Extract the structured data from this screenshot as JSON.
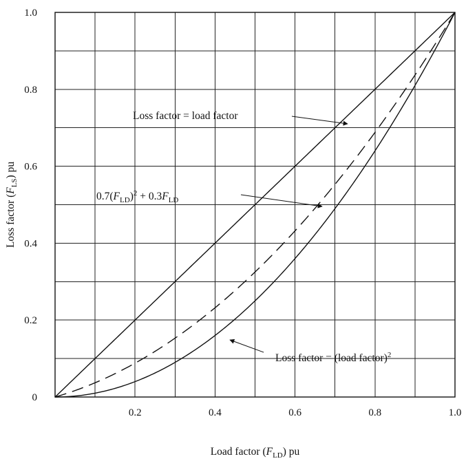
{
  "chart_data": {
    "type": "line",
    "xlabel": {
      "prefix": "Load factor (",
      "var": "F",
      "sub": "LD",
      "suffix": ") pu"
    },
    "ylabel": {
      "prefix": "Loss factor (",
      "var": "F",
      "sub": "LS",
      "suffix": ") pu"
    },
    "xlim": [
      0,
      1
    ],
    "ylim": [
      0,
      1
    ],
    "grid": true,
    "x_ticks": [
      {
        "value": 0.2,
        "label": "0.2"
      },
      {
        "value": 0.4,
        "label": "0.4"
      },
      {
        "value": 0.6,
        "label": "0.6"
      },
      {
        "value": 0.8,
        "label": "0.8"
      },
      {
        "value": 1.0,
        "label": "1.0"
      }
    ],
    "y_ticks": [
      {
        "value": 0,
        "label": "0"
      },
      {
        "value": 0.2,
        "label": "0.2"
      },
      {
        "value": 0.4,
        "label": "0.4"
      },
      {
        "value": 0.6,
        "label": "0.6"
      },
      {
        "value": 0.8,
        "label": "0.8"
      },
      {
        "value": 1.0,
        "label": "1.0"
      }
    ],
    "grid_x": [
      0.1,
      0.2,
      0.3,
      0.4,
      0.5,
      0.6,
      0.7,
      0.8,
      0.9
    ],
    "grid_y": [
      0.1,
      0.2,
      0.3,
      0.4,
      0.5,
      0.6,
      0.7,
      0.8,
      0.9
    ],
    "x": [
      0,
      0.1,
      0.2,
      0.3,
      0.4,
      0.5,
      0.6,
      0.7,
      0.8,
      0.9,
      1.0
    ],
    "series": [
      {
        "key": "linear",
        "style": "solid",
        "values": [
          0,
          0.1,
          0.2,
          0.3,
          0.4,
          0.5,
          0.6,
          0.7,
          0.8,
          0.9,
          1.0
        ]
      },
      {
        "key": "blend",
        "style": "dashed",
        "values": [
          0,
          0.037,
          0.088,
          0.153,
          0.232,
          0.325,
          0.432,
          0.553,
          0.688,
          0.837,
          1.0
        ]
      },
      {
        "key": "square",
        "style": "solid",
        "values": [
          0,
          0.01,
          0.04,
          0.09,
          0.16,
          0.25,
          0.36,
          0.49,
          0.64,
          0.81,
          1.0
        ]
      }
    ],
    "annotations": [
      {
        "key": "linear",
        "parts": [
          {
            "t": "Loss factor = load factor"
          }
        ]
      },
      {
        "key": "blend",
        "parts": [
          {
            "t": "0.7("
          },
          {
            "t": "F",
            "i": true
          },
          {
            "t": "LD",
            "sub": true
          },
          {
            "t": ")"
          },
          {
            "t": "2",
            "sup": true
          },
          {
            "t": " + 0.3"
          },
          {
            "t": "F",
            "i": true
          },
          {
            "t": "LD",
            "sub": true
          }
        ]
      },
      {
        "key": "square",
        "parts": [
          {
            "t": "Loss factor = (load factor)"
          },
          {
            "t": "2",
            "sup": true
          }
        ]
      }
    ]
  }
}
